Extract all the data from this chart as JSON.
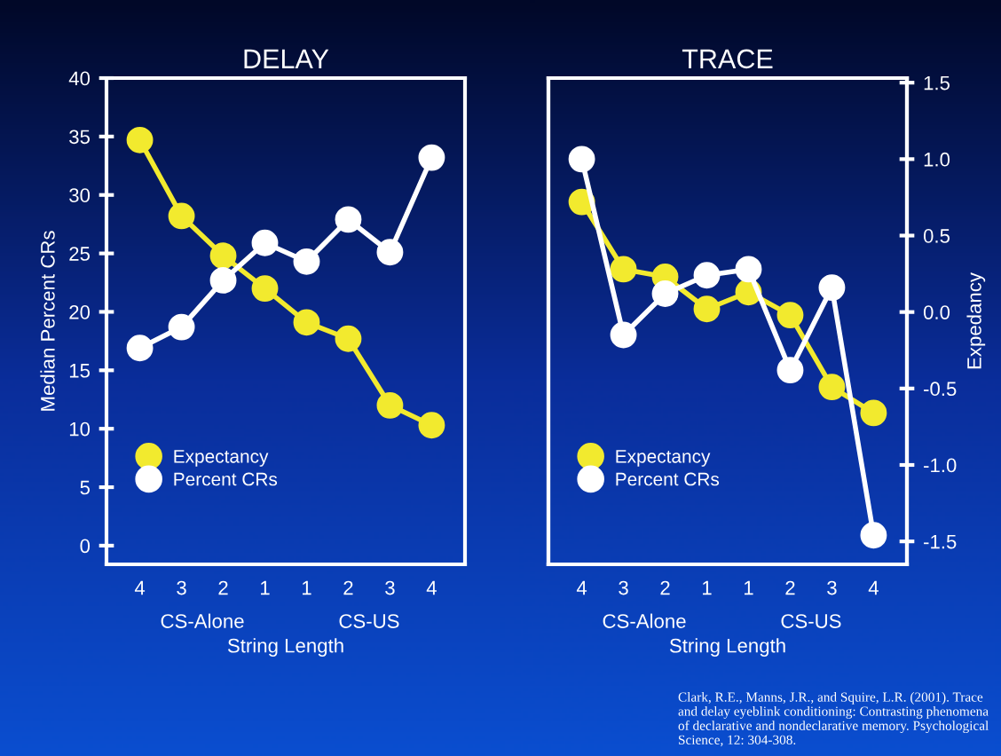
{
  "chart_data": [
    {
      "type": "line",
      "title": "DELAY",
      "xlabel": "String Length",
      "ylabel": "Median Percent CRs",
      "categories": [
        "4",
        "3",
        "2",
        "1",
        "1",
        "2",
        "3",
        "4"
      ],
      "series": [
        {
          "name": "Expectancy",
          "color": "#f2ea2e",
          "values": [
            34.7,
            28.2,
            24.8,
            22.0,
            19.1,
            17.7,
            12.0,
            10.3
          ]
        },
        {
          "name": "Percent CRs",
          "color": "#ffffff",
          "values": [
            16.9,
            18.7,
            22.7,
            25.9,
            24.3,
            27.9,
            25.1,
            33.2
          ]
        }
      ],
      "ylim": [
        -1.6,
        40
      ],
      "yticks": [
        0,
        5,
        10,
        15,
        20,
        25,
        30,
        35,
        40
      ],
      "marker": "circle",
      "legend": "bottom left",
      "grid": false,
      "annotations": [
        "CS-Alone",
        "CS-US"
      ]
    },
    {
      "type": "line",
      "title": "TRACE",
      "xlabel": "String Length",
      "y2label": "Expedancy",
      "categories": [
        "4",
        "3",
        "2",
        "1",
        "1",
        "2",
        "3",
        "4"
      ],
      "series": [
        {
          "name": "Expectancy",
          "color": "#f2ea2e",
          "axis": "y2",
          "values": [
            0.72,
            0.28,
            0.23,
            0.02,
            0.13,
            -0.02,
            -0.49,
            -0.66
          ]
        },
        {
          "name": "Percent CRs",
          "color": "#ffffff",
          "axis": "y2",
          "values": [
            1.0,
            -0.15,
            0.12,
            0.24,
            0.28,
            -0.38,
            0.16,
            -1.46
          ]
        }
      ],
      "y2lim": [
        -1.65,
        1.53
      ],
      "y2ticks": [
        {
          "value": -1.5,
          "label": "-1.5"
        },
        {
          "value": -1.0,
          "label": "-1.0"
        },
        {
          "value": -0.5,
          "label": "-0.5"
        },
        {
          "value": 0.0,
          "label": "0.0"
        },
        {
          "value": 0.5,
          "label": "0.5"
        },
        {
          "value": 1.0,
          "label": "1.0"
        },
        {
          "value": 1.5,
          "label": "1.5"
        }
      ],
      "marker": "circle",
      "legend": "bottom left",
      "grid": false,
      "annotations": [
        "CS-Alone",
        "CS-US",
        "Clark, R.E., Manns, J.R., and Squire, L.R. (2001). Trace and delay eyeblink conditioning: Contrasting phenomena of declarative and nondeclarative memory. Psychological Science, 12: 304-308."
      ]
    }
  ]
}
